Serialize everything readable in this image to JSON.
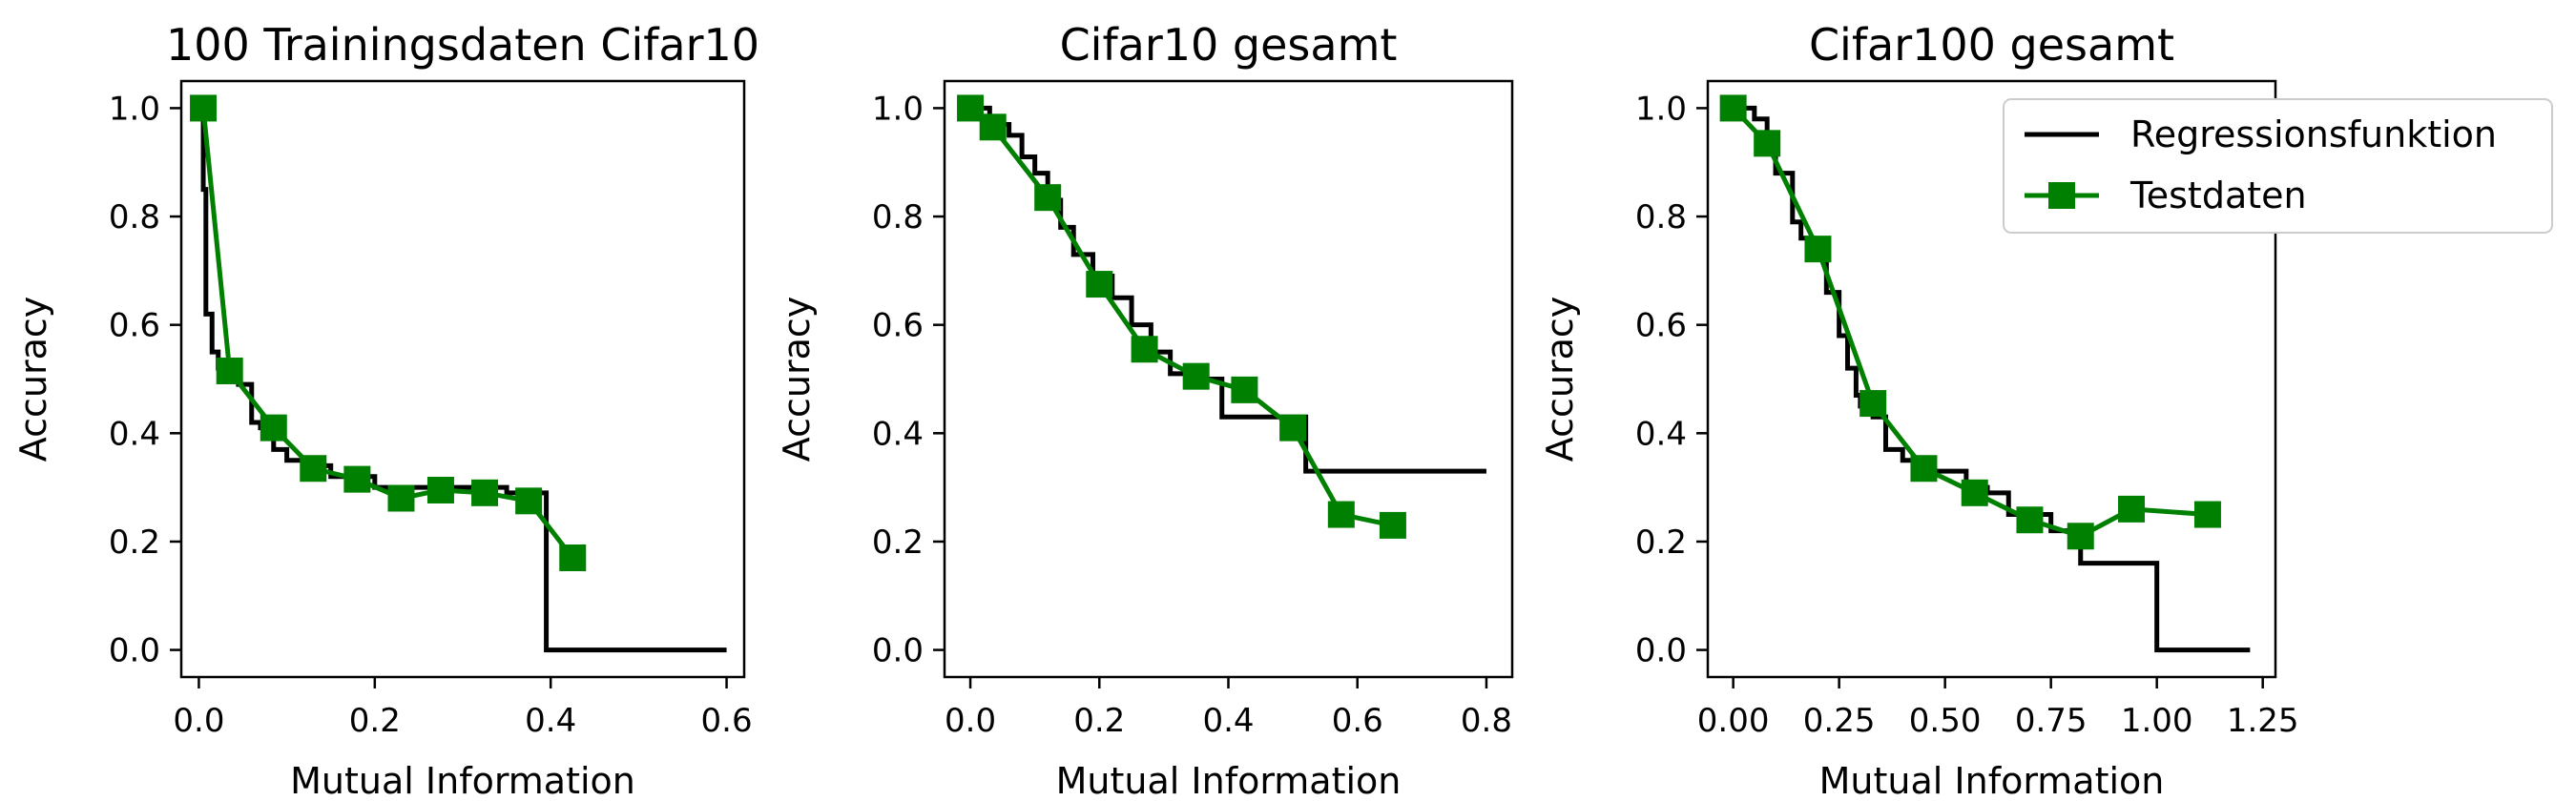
{
  "chart_data": [
    {
      "type": "line",
      "title": "100 Trainingsdaten Cifar10",
      "xlabel": "Mutual Information",
      "ylabel": "Accuracy",
      "xlim": [
        -0.02,
        0.62
      ],
      "ylim": [
        -0.05,
        1.05
      ],
      "xticks": [
        0.0,
        0.2,
        0.4,
        0.6
      ],
      "xtick_labels": [
        "0.0",
        "0.2",
        "0.4",
        "0.6"
      ],
      "yticks": [
        0.0,
        0.2,
        0.4,
        0.6,
        0.8,
        1.0
      ],
      "ytick_labels": [
        "0.0",
        "0.2",
        "0.4",
        "0.6",
        "0.8",
        "1.0"
      ],
      "series": [
        {
          "name": "Regressionsfunktion",
          "kind": "step",
          "color": "#000000",
          "x": [
            0.0,
            0.005,
            0.008,
            0.012,
            0.015,
            0.022,
            0.03,
            0.045,
            0.06,
            0.07,
            0.085,
            0.1,
            0.12,
            0.15,
            0.2,
            0.25,
            0.3,
            0.35,
            0.39,
            0.395,
            0.6
          ],
          "y": [
            1.0,
            0.85,
            0.62,
            0.62,
            0.55,
            0.52,
            0.5,
            0.49,
            0.42,
            0.41,
            0.37,
            0.35,
            0.34,
            0.32,
            0.3,
            0.3,
            0.3,
            0.29,
            0.29,
            0.0,
            0.0
          ]
        },
        {
          "name": "Testdaten",
          "kind": "line-marker",
          "color": "#008000",
          "x": [
            0.005,
            0.035,
            0.085,
            0.13,
            0.18,
            0.23,
            0.275,
            0.325,
            0.375,
            0.425
          ],
          "y": [
            1.0,
            0.515,
            0.41,
            0.335,
            0.315,
            0.28,
            0.295,
            0.29,
            0.275,
            0.17
          ]
        }
      ]
    },
    {
      "type": "line",
      "title": "Cifar10 gesamt",
      "xlabel": "Mutual Information",
      "ylabel": "Accuracy",
      "xlim": [
        -0.04,
        0.84
      ],
      "ylim": [
        -0.05,
        1.05
      ],
      "xticks": [
        0.0,
        0.2,
        0.4,
        0.6,
        0.8
      ],
      "xtick_labels": [
        "0.0",
        "0.2",
        "0.4",
        "0.6",
        "0.8"
      ],
      "yticks": [
        0.0,
        0.2,
        0.4,
        0.6,
        0.8,
        1.0
      ],
      "ytick_labels": [
        "0.0",
        "0.2",
        "0.4",
        "0.6",
        "0.8",
        "1.0"
      ],
      "series": [
        {
          "name": "Regressionsfunktion",
          "kind": "step",
          "color": "#000000",
          "x": [
            0.0,
            0.03,
            0.06,
            0.08,
            0.1,
            0.12,
            0.14,
            0.16,
            0.19,
            0.22,
            0.25,
            0.28,
            0.31,
            0.35,
            0.39,
            0.5,
            0.52,
            0.8
          ],
          "y": [
            1.0,
            0.97,
            0.95,
            0.91,
            0.88,
            0.83,
            0.78,
            0.73,
            0.69,
            0.65,
            0.6,
            0.55,
            0.51,
            0.5,
            0.43,
            0.43,
            0.33,
            0.33
          ]
        },
        {
          "name": "Testdaten",
          "kind": "line-marker",
          "color": "#008000",
          "x": [
            0.0,
            0.035,
            0.12,
            0.2,
            0.27,
            0.35,
            0.425,
            0.5,
            0.575,
            0.655
          ],
          "y": [
            1.0,
            0.965,
            0.835,
            0.675,
            0.555,
            0.505,
            0.48,
            0.41,
            0.25,
            0.23
          ]
        }
      ]
    },
    {
      "type": "line",
      "title": "Cifar100 gesamt",
      "xlabel": "Mutual Information",
      "ylabel": "Accuracy",
      "xlim": [
        -0.06,
        1.28
      ],
      "ylim": [
        -0.05,
        1.05
      ],
      "xticks": [
        0.0,
        0.25,
        0.5,
        0.75,
        1.0,
        1.25
      ],
      "xtick_labels": [
        "0.00",
        "0.25",
        "0.50",
        "0.75",
        "1.00",
        "1.25"
      ],
      "yticks": [
        0.0,
        0.2,
        0.4,
        0.6,
        0.8,
        1.0
      ],
      "ytick_labels": [
        "0.0",
        "0.2",
        "0.4",
        "0.6",
        "0.8",
        "1.0"
      ],
      "series": [
        {
          "name": "Regressionsfunktion",
          "kind": "step",
          "color": "#000000",
          "x": [
            0.0,
            0.05,
            0.08,
            0.1,
            0.14,
            0.16,
            0.19,
            0.22,
            0.25,
            0.27,
            0.29,
            0.3,
            0.33,
            0.36,
            0.4,
            0.45,
            0.55,
            0.6,
            0.65,
            0.75,
            0.82,
            0.98,
            1.0,
            1.22
          ],
          "y": [
            1.0,
            0.98,
            0.93,
            0.88,
            0.79,
            0.76,
            0.72,
            0.66,
            0.58,
            0.52,
            0.47,
            0.45,
            0.43,
            0.37,
            0.35,
            0.33,
            0.3,
            0.29,
            0.25,
            0.22,
            0.16,
            0.16,
            0.0,
            0.0
          ]
        },
        {
          "name": "Testdaten",
          "kind": "line-marker",
          "color": "#008000",
          "x": [
            0.0,
            0.08,
            0.2,
            0.33,
            0.45,
            0.57,
            0.7,
            0.82,
            0.94,
            1.12
          ],
          "y": [
            1.0,
            0.935,
            0.74,
            0.455,
            0.335,
            0.29,
            0.24,
            0.21,
            0.26,
            0.25
          ]
        }
      ],
      "legend": {
        "position": "top-right",
        "entries": [
          "Regressionsfunktion",
          "Testdaten"
        ]
      }
    }
  ]
}
